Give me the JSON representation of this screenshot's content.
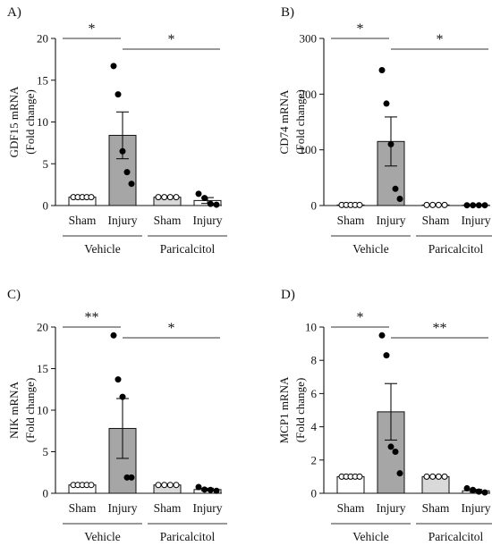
{
  "chart_data": [
    {
      "type": "bar",
      "panel_label": "A)",
      "ylabel": "GDF15  mRNA",
      "ylabel2": "(Fold change)",
      "ylim": [
        0,
        20
      ],
      "yticks": [
        0,
        5,
        10,
        15,
        20
      ],
      "categories": [
        "Sham",
        "Injury",
        "Sham",
        "Injury"
      ],
      "groups": [
        {
          "label": "Vehicle",
          "span": [
            0,
            1
          ]
        },
        {
          "label": "Paricalcitol",
          "span": [
            2,
            3
          ]
        }
      ],
      "bar_colors": [
        "#ffffff",
        "#a6a6a6",
        "#d9d9d9",
        "#ffffff"
      ],
      "marker_fill": [
        "#ffffff",
        "#000000",
        "#ffffff",
        "#000000"
      ],
      "values": [
        1.0,
        8.4,
        1.0,
        0.6
      ],
      "sem": [
        0.05,
        2.8,
        0.03,
        0.35
      ],
      "points": [
        [
          1.0,
          1.0,
          1.0,
          1.0,
          1.0
        ],
        [
          16.7,
          13.3,
          6.5,
          4.0,
          2.6
        ],
        [
          1.0,
          1.0,
          1.0,
          1.0
        ],
        [
          1.4,
          0.9,
          0.2,
          0.1
        ]
      ],
      "significance": [
        {
          "from": 0,
          "to": 1,
          "label": "*"
        },
        {
          "from": 1,
          "to": 3,
          "label": "*"
        }
      ]
    },
    {
      "type": "bar",
      "panel_label": "B)",
      "ylabel": "CD74  mRNA",
      "ylabel2": "(Fold change)",
      "ylim": [
        0,
        300
      ],
      "yticks": [
        0,
        100,
        200,
        300
      ],
      "categories": [
        "Sham",
        "Injury",
        "Sham",
        "Injury"
      ],
      "groups": [
        {
          "label": "Vehicle",
          "span": [
            0,
            1
          ]
        },
        {
          "label": "Paricalcitol",
          "span": [
            2,
            3
          ]
        }
      ],
      "bar_colors": [
        "#ffffff",
        "#a6a6a6",
        "#d9d9d9",
        "#ffffff"
      ],
      "marker_fill": [
        "#ffffff",
        "#000000",
        "#ffffff",
        "#000000"
      ],
      "values": [
        1.0,
        115,
        1.0,
        0.5
      ],
      "sem": [
        0.5,
        44,
        0.5,
        0.3
      ],
      "points": [
        [
          1.0,
          1.0,
          1.0,
          1.0,
          1.0
        ],
        [
          243,
          183,
          110,
          30,
          12
        ],
        [
          1.0,
          1.0,
          1.0,
          1.0
        ],
        [
          0.5,
          0.5,
          0.5,
          0.5
        ]
      ],
      "significance": [
        {
          "from": 0,
          "to": 1,
          "label": "*"
        },
        {
          "from": 1,
          "to": 3,
          "label": "*"
        }
      ]
    },
    {
      "type": "bar",
      "panel_label": "C)",
      "ylabel": "NIK  mRNA",
      "ylabel2": "(Fold change)",
      "ylim": [
        0,
        20
      ],
      "yticks": [
        0,
        5,
        10,
        15,
        20
      ],
      "categories": [
        "Sham",
        "Injury",
        "Sham",
        "Injury"
      ],
      "groups": [
        {
          "label": "Vehicle",
          "span": [
            0,
            1
          ]
        },
        {
          "label": "Paricalcitol",
          "span": [
            2,
            3
          ]
        }
      ],
      "bar_colors": [
        "#ffffff",
        "#a6a6a6",
        "#d9d9d9",
        "#ffffff"
      ],
      "marker_fill": [
        "#ffffff",
        "#000000",
        "#ffffff",
        "#000000"
      ],
      "values": [
        1.0,
        7.8,
        1.0,
        0.45
      ],
      "sem": [
        0.05,
        3.6,
        0.03,
        0.15
      ],
      "points": [
        [
          1.0,
          1.0,
          1.0,
          1.0,
          1.0
        ],
        [
          19.0,
          13.7,
          11.6,
          1.9,
          1.9
        ],
        [
          1.0,
          1.0,
          1.0,
          1.0
        ],
        [
          0.75,
          0.45,
          0.4,
          0.3
        ]
      ],
      "significance": [
        {
          "from": 0,
          "to": 1,
          "label": "**"
        },
        {
          "from": 1,
          "to": 3,
          "label": "*"
        }
      ]
    },
    {
      "type": "bar",
      "panel_label": "D)",
      "ylabel": "MCP1  mRNA",
      "ylabel2": "(Fold change)",
      "ylim": [
        0,
        10
      ],
      "yticks": [
        0,
        2,
        4,
        6,
        8,
        10
      ],
      "categories": [
        "Sham",
        "Injury",
        "Sham",
        "Injury"
      ],
      "groups": [
        {
          "label": "Vehicle",
          "span": [
            0,
            1
          ]
        },
        {
          "label": "Paricalcitol",
          "span": [
            2,
            3
          ]
        }
      ],
      "bar_colors": [
        "#ffffff",
        "#a6a6a6",
        "#d9d9d9",
        "#ffffff"
      ],
      "marker_fill": [
        "#ffffff",
        "#000000",
        "#ffffff",
        "#000000"
      ],
      "values": [
        1.0,
        4.9,
        1.0,
        0.15
      ],
      "sem": [
        0.05,
        1.7,
        0.03,
        0.08
      ],
      "points": [
        [
          1.0,
          1.0,
          1.0,
          1.0,
          1.0
        ],
        [
          9.5,
          8.3,
          2.8,
          2.5,
          1.2
        ],
        [
          1.0,
          1.0,
          1.0,
          1.0
        ],
        [
          0.3,
          0.2,
          0.1,
          0.05
        ]
      ],
      "significance": [
        {
          "from": 0,
          "to": 1,
          "label": "*"
        },
        {
          "from": 1,
          "to": 3,
          "label": "**"
        }
      ]
    }
  ]
}
